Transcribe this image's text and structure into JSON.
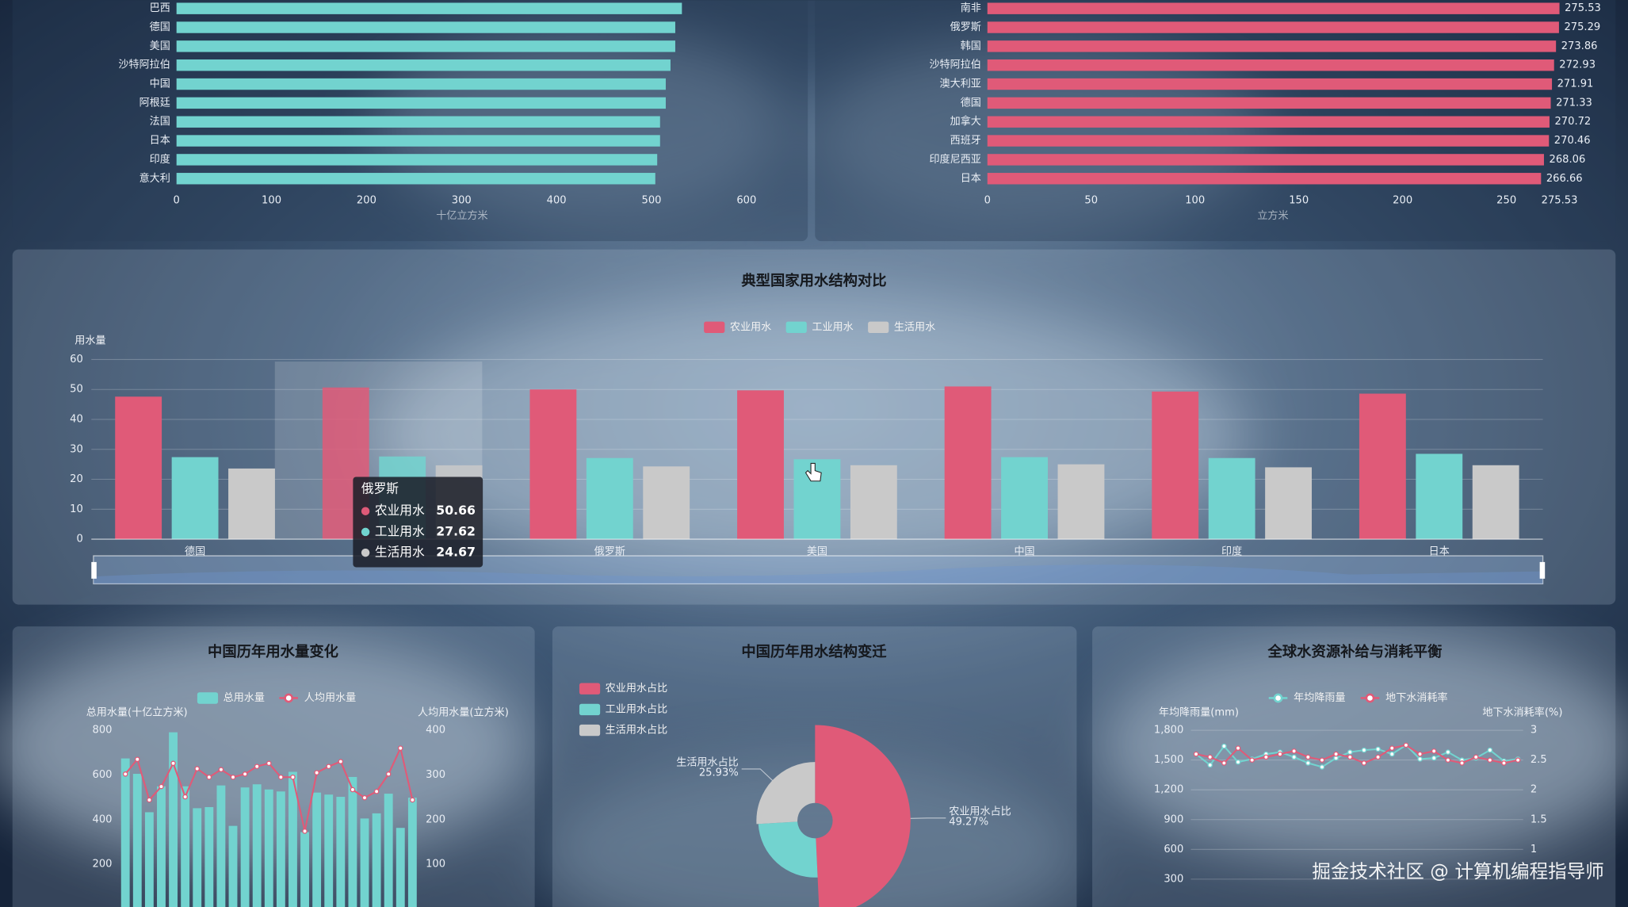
{
  "chart_data": [
    {
      "type": "bar",
      "orientation": "horizontal",
      "categories": [
        "巴西",
        "德国",
        "美国",
        "沙特阿拉伯",
        "中国",
        "阿根廷",
        "法国",
        "日本",
        "印度",
        "意大利"
      ],
      "values": [
        532,
        525,
        525,
        520,
        515,
        515,
        509,
        509,
        506,
        504
      ],
      "color": "#72d3cf",
      "xlim": [
        0,
        600
      ],
      "xticks": [
        0,
        100,
        200,
        300,
        400,
        500,
        600
      ],
      "xlabel": "十亿立方米"
    },
    {
      "type": "bar",
      "orientation": "horizontal",
      "categories": [
        "南非",
        "俄罗斯",
        "韩国",
        "沙特阿拉伯",
        "澳大利亚",
        "德国",
        "加拿大",
        "西班牙",
        "印度尼西亚",
        "日本"
      ],
      "values": [
        275.53,
        275.29,
        273.86,
        272.93,
        271.91,
        271.33,
        270.72,
        270.46,
        268.06,
        266.66
      ],
      "show_values": true,
      "color": "#e05a78",
      "xlim": [
        0,
        275.53
      ],
      "xticks": [
        0,
        50,
        100,
        150,
        200,
        250,
        275.53
      ],
      "xlabel": "立方米"
    },
    {
      "type": "bar",
      "title": "典型国家用水结构对比",
      "ylabel": "用水量",
      "categories": [
        "德国",
        null,
        "俄罗斯",
        "美国",
        "中国",
        "印度",
        "日本"
      ],
      "series": [
        {
          "name": "农业用水",
          "color": "#e05a78",
          "values": [
            47.6,
            50.66,
            50,
            49.7,
            51,
            49.3,
            48.6
          ]
        },
        {
          "name": "工业用水",
          "color": "#72d3cf",
          "values": [
            27.4,
            27.62,
            27.1,
            26.7,
            27.4,
            27.1,
            28.5
          ]
        },
        {
          "name": "生活用水",
          "color": "#c9c9c9",
          "values": [
            23.6,
            24.67,
            24.3,
            24.7,
            25,
            24,
            24.7
          ]
        }
      ],
      "ylim": [
        0,
        60
      ],
      "yticks": [
        0,
        10,
        20,
        30,
        40,
        50,
        60
      ],
      "grid": true,
      "tooltip": {
        "title": "俄罗斯"
      }
    },
    {
      "type": "bar_line",
      "title": "中国历年用水量变化",
      "ylabel": "总用水量(十亿立方米)",
      "y2label": "人均用水量(立方米)",
      "categories": [
        null,
        null,
        null,
        null,
        null,
        null,
        null,
        null,
        null,
        null,
        null,
        null,
        null,
        null,
        null,
        null,
        null,
        null,
        null,
        null,
        null,
        null,
        null,
        null,
        null
      ],
      "series": [
        {
          "name": "总用水量",
          "type": "bar",
          "color": "#72d3cf",
          "values": [
            674,
            605,
            433,
            549,
            791,
            549,
            451,
            456,
            553,
            372,
            544,
            558,
            535,
            526,
            614,
            344,
            521,
            512,
            502,
            591,
            405,
            428,
            516,
            363,
            498
          ]
        },
        {
          "name": "人均用水量",
          "type": "line",
          "axis": "y2",
          "color": "#e05a78",
          "values": [
            302,
            335,
            244,
            274,
            326,
            251,
            314,
            295,
            312,
            295,
            302,
            319,
            326,
            295,
            295,
            174,
            305,
            319,
            330,
            267,
            249,
            263,
            302,
            360,
            244
          ]
        }
      ],
      "ylim": [
        0,
        800
      ],
      "yticks": [
        200,
        400,
        600,
        800
      ],
      "y2lim": [
        0,
        400
      ],
      "y2ticks": [
        100,
        200,
        300,
        400
      ]
    },
    {
      "type": "pie",
      "rose": true,
      "title": "中国历年用水结构变迁",
      "categories": [
        "农业用水占比",
        "工业用水占比",
        "生活用水占比"
      ],
      "values": [
        49.27,
        24.8,
        25.93
      ],
      "value_labels": [
        "49.27%",
        null,
        "25.93%"
      ],
      "colors": [
        "#e05a78",
        "#72d3cf",
        "#c9c9c9"
      ]
    },
    {
      "type": "line",
      "title": "全球水资源补给与消耗平衡",
      "ylabel": "年均降雨量(mm)",
      "y2label": "地下水消耗率(%)",
      "categories": [
        null,
        null,
        null,
        null,
        null,
        null,
        null,
        null,
        null,
        null,
        null,
        null,
        null,
        null,
        null,
        null,
        null,
        null,
        null,
        null,
        null,
        null,
        null,
        null
      ],
      "series": [
        {
          "name": "年均降雨量",
          "color": "#72d3cf",
          "values": [
            1560,
            1450,
            1640,
            1480,
            1510,
            1560,
            1580,
            1530,
            1470,
            1430,
            1520,
            1580,
            1600,
            1610,
            1560,
            1650,
            1510,
            1520,
            1580,
            1500,
            1520,
            1600,
            1490,
            1510
          ]
        },
        {
          "name": "地下水消耗率",
          "axis": "y2",
          "color": "#e05a78",
          "values": [
            2.6,
            2.55,
            2.45,
            2.7,
            2.5,
            2.55,
            2.6,
            2.65,
            2.55,
            2.5,
            2.6,
            2.55,
            2.45,
            2.55,
            2.7,
            2.75,
            2.6,
            2.65,
            2.5,
            2.45,
            2.55,
            2.5,
            2.45,
            2.5
          ]
        }
      ],
      "ylim": [
        0,
        1800
      ],
      "yticks": [
        300,
        600,
        900,
        {
          "value": 1200,
          "label": "1,200"
        },
        {
          "value": 1500,
          "label": "1,500"
        },
        {
          "value": 1800,
          "label": "1,800"
        }
      ],
      "y2lim": [
        0,
        3
      ],
      "y2ticks": [
        1,
        1.5,
        2,
        2.5,
        3
      ],
      "grid": true
    }
  ],
  "watermark": "掘金技术社区 @ 计算机编程指导师"
}
